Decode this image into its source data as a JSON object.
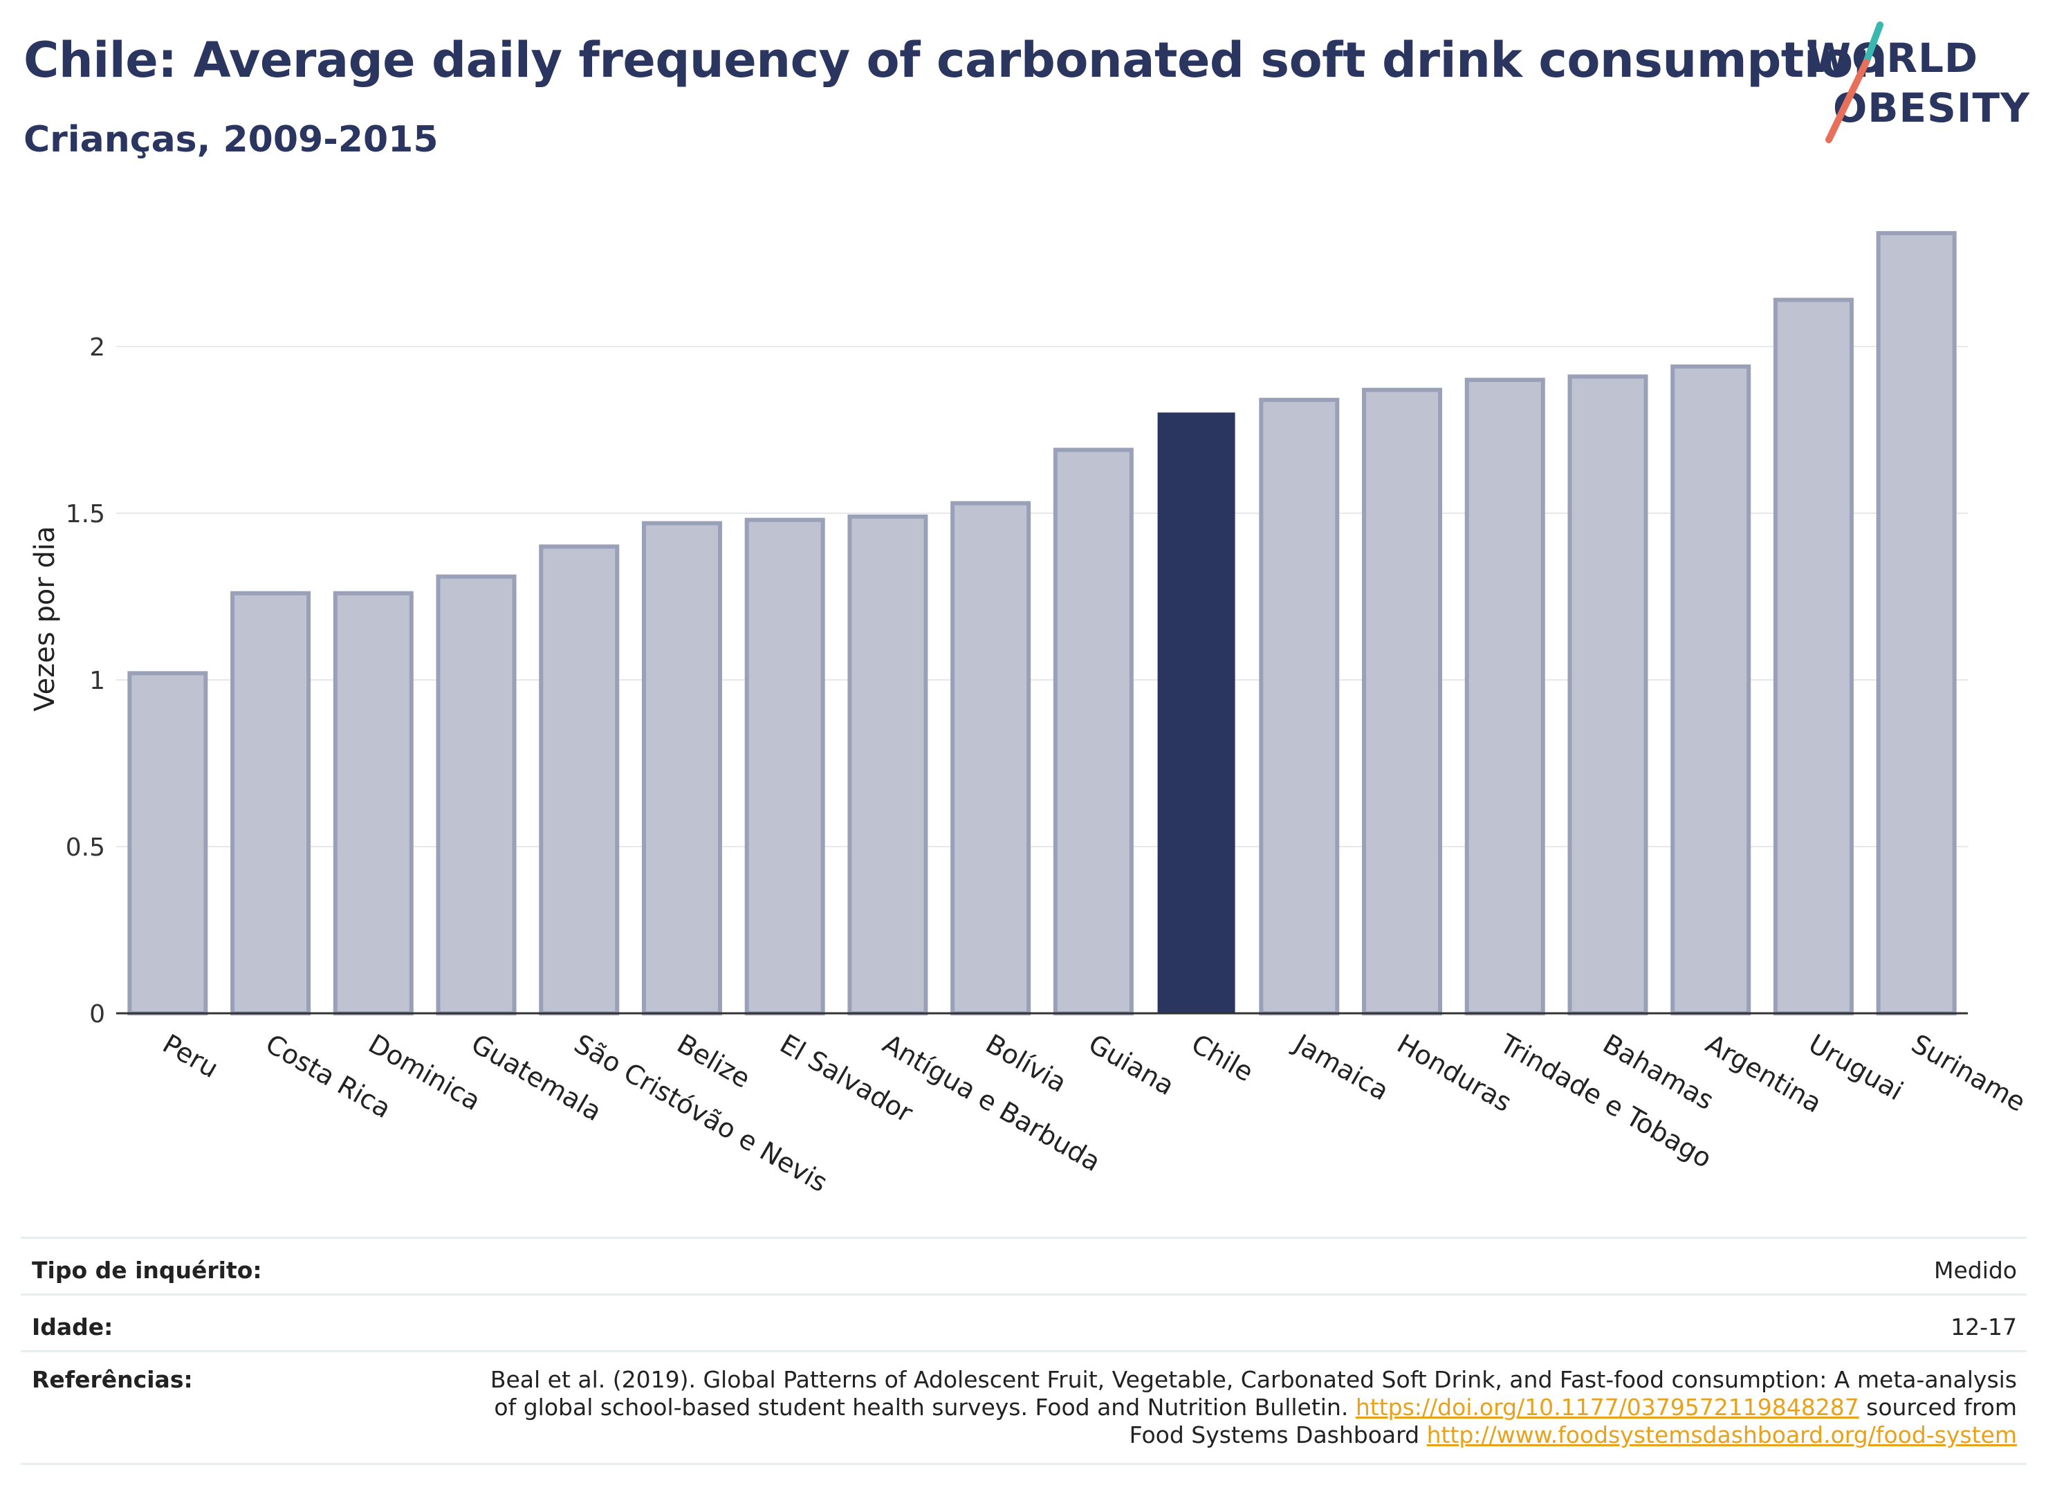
{
  "header": {
    "title": "Chile: Average daily frequency of carbonated soft drink consumption",
    "subtitle": "Crianças, 2009-2015"
  },
  "logo": {
    "line1": "WORLD",
    "line2": "OBESITY",
    "colors": {
      "navy": "#2a3560",
      "teal": "#3ab8b0",
      "coral": "#e8705a"
    }
  },
  "chart_data": {
    "type": "bar",
    "title": "Chile: Average daily frequency of carbonated soft drink consumption",
    "ylabel": "Vezes por dia",
    "ylim": [
      0,
      2.45
    ],
    "yticks": [
      0,
      0.5,
      1,
      1.5,
      2
    ],
    "ytick_labels": [
      "0",
      "0.5",
      "1",
      "1.5",
      "2"
    ],
    "categories": [
      "Peru",
      "Costa Rica",
      "Dominica",
      "Guatemala",
      "São Cristóvão e Nevis",
      "Belize",
      "El Salvador",
      "Antígua e Barbuda",
      "Bolívia",
      "Guiana",
      "Chile",
      "Jamaica",
      "Honduras",
      "Trindade e Tobago",
      "Bahamas",
      "Argentina",
      "Uruguai",
      "Suriname"
    ],
    "values": [
      1.02,
      1.26,
      1.26,
      1.31,
      1.4,
      1.47,
      1.48,
      1.49,
      1.53,
      1.69,
      1.8,
      1.84,
      1.87,
      1.9,
      1.91,
      1.94,
      2.14,
      2.34
    ],
    "highlight": "Chile",
    "colors": {
      "bar": "#bfc3d1",
      "bar_edge": "#99a0b8",
      "highlight": "#2a3560"
    },
    "grid": true
  },
  "meta": {
    "survey_label": "Tipo de inquérito:",
    "survey_value": "Medido",
    "age_label": "Idade:",
    "age_value": "12-17",
    "ref_label": "Referências:",
    "ref_text1": "Beal et al. (2019). Global Patterns of Adolescent Fruit, Vegetable, Carbonated Soft Drink, and Fast-food consumption: A meta-analysis",
    "ref_text2": "of global school-based student health surveys. Food and Nutrition Bulletin. ",
    "ref_link1": "https://doi.org/10.1177/0379572119848287",
    "ref_text3": " sourced from",
    "ref_text4": "Food Systems Dashboard ",
    "ref_link2": "http://www.foodsystemsdashboard.org/food-system"
  }
}
